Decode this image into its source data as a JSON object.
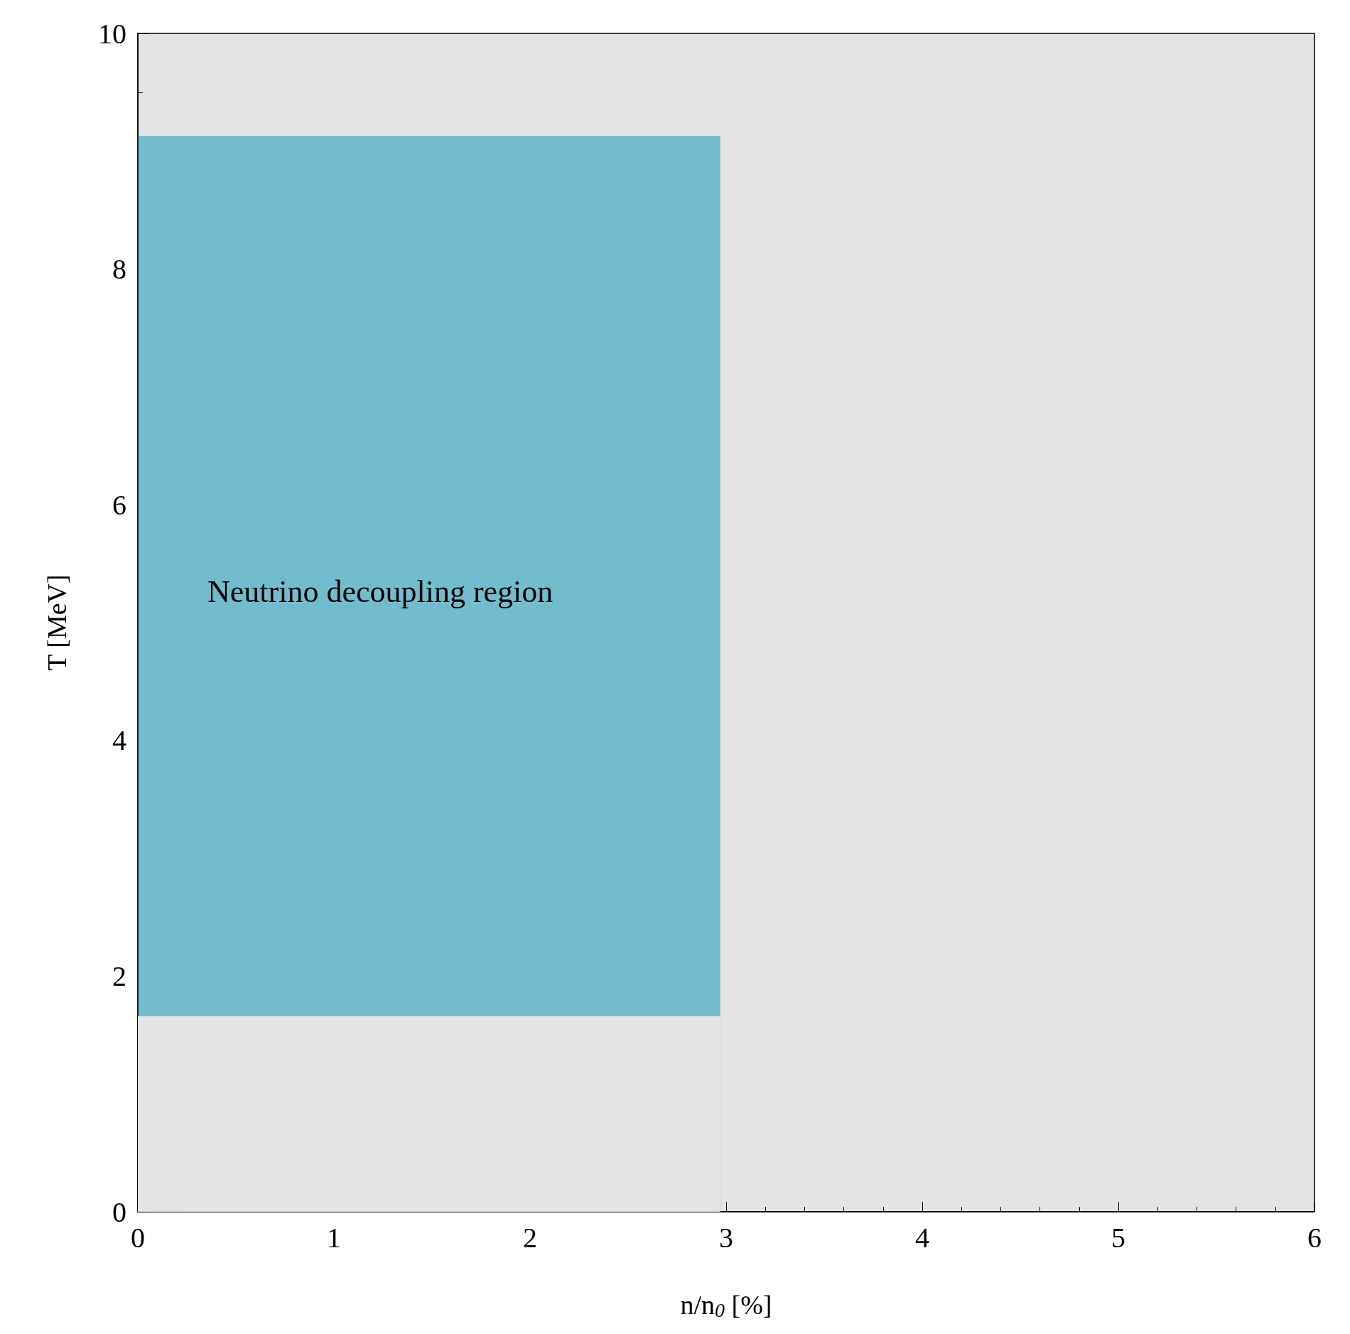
{
  "chart_data": {
    "type": "area",
    "xlabel": "n/n$_{0}$ [%]",
    "ylabel": "T [MeV]",
    "x": [
      0,
      2.97
    ],
    "stacked": true,
    "series": [
      {
        "values": [
          1.66,
          1.66
        ],
        "color": "#e4e4e4"
      },
      {
        "values": [
          7.47,
          7.47
        ],
        "color": "#73bccd"
      }
    ],
    "annotations": [
      "Neutrino decoupling region"
    ],
    "xlim": [
      0,
      6
    ],
    "xticks": [
      0,
      1,
      2,
      3,
      4,
      5,
      6
    ],
    "ylim": [
      0,
      10
    ],
    "yticks": [
      0,
      2,
      4,
      6,
      8,
      10
    ],
    "grid": false
  }
}
